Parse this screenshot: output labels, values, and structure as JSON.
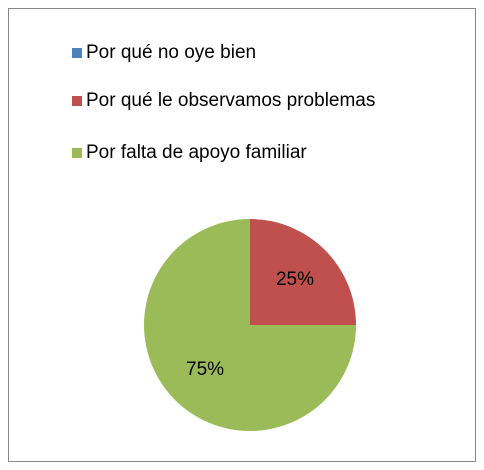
{
  "chart_data": {
    "type": "pie",
    "categories": [
      "Por qué no oye bien",
      "Por qué le observamos problemas",
      "Por falta de apoyo familiar"
    ],
    "values": [
      0,
      25,
      75
    ],
    "value_labels": [
      null,
      "25%",
      "75%"
    ],
    "colors": [
      "#4f81bd",
      "#c0504d",
      "#9bbb59"
    ],
    "legend": "top-left"
  }
}
